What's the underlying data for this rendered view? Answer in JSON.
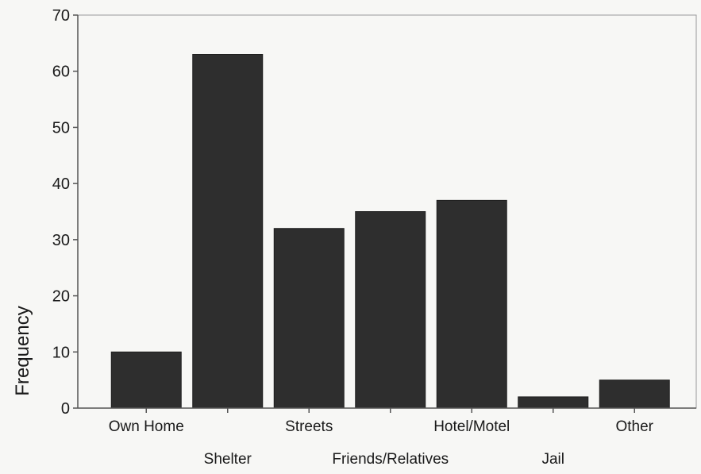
{
  "chart_data": {
    "type": "bar",
    "title": "",
    "xlabel": "",
    "ylabel": "Frequency",
    "categories": [
      "Own Home",
      "Shelter",
      "Streets",
      "Friends/Relatives",
      "Hotel/Motel",
      "Jail",
      "Other"
    ],
    "values": [
      10,
      63,
      32,
      35,
      37,
      2,
      5
    ],
    "ylim": [
      0,
      70
    ],
    "yticks": [
      "0",
      "10",
      "20",
      "30",
      "40",
      "50",
      "60",
      "70"
    ],
    "grid": false,
    "legend": "none",
    "tick_label_rows": [
      "upper",
      "lower",
      "upper",
      "lower",
      "upper",
      "lower",
      "upper"
    ],
    "colors": {
      "bar": "#2e2e2e",
      "axis": "#555555",
      "background": "#f7f7f5",
      "text": "#1a1a1a"
    }
  }
}
